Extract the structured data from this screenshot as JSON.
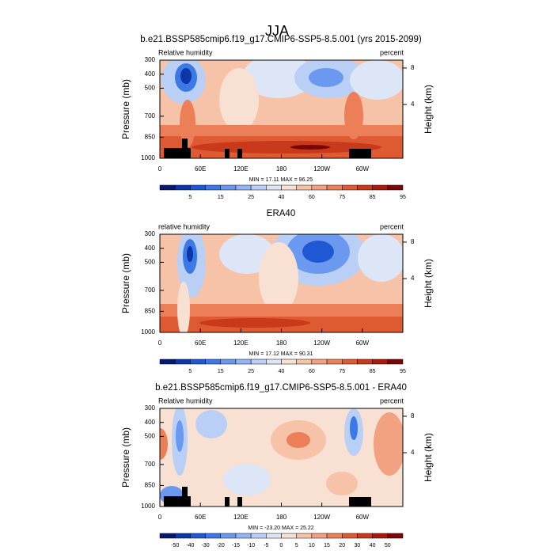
{
  "figure_title": "JJA",
  "chart_data": [
    {
      "type": "contour",
      "title": "b.e21.BSSP585cmip6.f19_g17.CMIP6-SSP5-8.5.001 (yrs 2015-2099)",
      "left_label": "Relative humidity",
      "right_label": "percent",
      "ylabel": "Pressure (mb)",
      "y2label": "Height (km)",
      "xlim": [
        0,
        360
      ],
      "xticks": [
        0,
        {
          "value": 60,
          "label": "60E"
        },
        {
          "value": 120,
          "label": "120E"
        },
        180,
        {
          "value": 240,
          "label": "120W"
        },
        {
          "value": 300,
          "label": "60W"
        }
      ],
      "ylim": [
        1000,
        300
      ],
      "yticks": [
        300,
        400,
        500,
        700,
        850,
        1000
      ],
      "y2ticks": [
        4,
        8
      ],
      "stats": "MIN = 17.11  MAX = 96.25",
      "colorbar_labels": [
        5,
        15,
        25,
        40,
        60,
        75,
        85,
        95
      ],
      "colors": [
        "#061a6e",
        "#0b37a8",
        "#1f58d2",
        "#3c78e6",
        "#6a99ef",
        "#93b5f4",
        "#b9cff6",
        "#dce6f7",
        "#f8e1d3",
        "#f6c2a8",
        "#f2a281",
        "#ec7f58",
        "#de5a33",
        "#c9391b",
        "#a9190c",
        "#7a0707"
      ]
    },
    {
      "type": "contour",
      "title": "ERA40",
      "left_label": "relative humidity",
      "right_label": "percent",
      "ylabel": "Pressure (mb)",
      "y2label": "Height (km)",
      "xlim": [
        0,
        360
      ],
      "xticks": [
        0,
        {
          "value": 60,
          "label": "60E"
        },
        {
          "value": 120,
          "label": "120E"
        },
        180,
        {
          "value": 240,
          "label": "120W"
        },
        {
          "value": 300,
          "label": "60W"
        }
      ],
      "ylim": [
        1000,
        300
      ],
      "yticks": [
        300,
        400,
        500,
        700,
        850,
        1000
      ],
      "y2ticks": [
        4,
        8
      ],
      "stats": "MIN = 17.12  MAX = 90.31",
      "colorbar_labels": [
        5,
        15,
        25,
        40,
        60,
        75,
        85,
        95
      ],
      "colors": [
        "#061a6e",
        "#0b37a8",
        "#1f58d2",
        "#3c78e6",
        "#6a99ef",
        "#93b5f4",
        "#b9cff6",
        "#dce6f7",
        "#f8e1d3",
        "#f6c2a8",
        "#f2a281",
        "#ec7f58",
        "#de5a33",
        "#c9391b",
        "#a9190c",
        "#7a0707"
      ]
    },
    {
      "type": "contour",
      "title": "b.e21.BSSP585cmip6.f19_g17.CMIP6-SSP5-8.5.001 - ERA40",
      "left_label": "Relative humidity",
      "right_label": "percent",
      "ylabel": "Pressure (mb)",
      "y2label": "Height (km)",
      "xlim": [
        0,
        360
      ],
      "xticks": [
        0,
        {
          "value": 60,
          "label": "60E"
        },
        {
          "value": 120,
          "label": "120E"
        },
        180,
        {
          "value": 240,
          "label": "120W"
        },
        {
          "value": 300,
          "label": "60W"
        }
      ],
      "ylim": [
        1000,
        300
      ],
      "yticks": [
        300,
        400,
        500,
        700,
        850,
        1000
      ],
      "y2ticks": [
        4,
        8
      ],
      "stats": "MIN = -23.20  MAX = 25.22",
      "colorbar_labels": [
        -50,
        -40,
        -30,
        -20,
        -15,
        -10,
        -5,
        0,
        5,
        10,
        15,
        20,
        30,
        40,
        50
      ],
      "colors": [
        "#061a6e",
        "#0b37a8",
        "#1f58d2",
        "#3c78e6",
        "#6a99ef",
        "#93b5f4",
        "#b9cff6",
        "#dce6f7",
        "#f8e1d3",
        "#f6c2a8",
        "#f2a281",
        "#ec7f58",
        "#de5a33",
        "#c9391b",
        "#a9190c",
        "#7a0707"
      ]
    }
  ]
}
